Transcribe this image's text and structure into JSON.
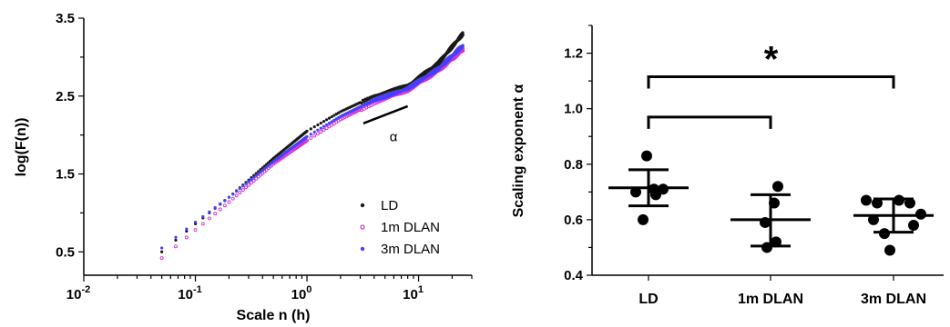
{
  "chart_data": [
    {
      "type": "scatter",
      "title": "",
      "xlabel": "Scale n (h)",
      "ylabel": "log(F(n))",
      "x_scale": "log",
      "xlim": [
        0.01,
        30
      ],
      "ylim": [
        0.2,
        3.5
      ],
      "x_tick_labels": [
        {
          "value": 0.01,
          "base": "10",
          "exp": "-2"
        },
        {
          "value": 0.1,
          "base": "10",
          "exp": "-1"
        },
        {
          "value": 1,
          "base": "10",
          "exp": "0"
        },
        {
          "value": 10,
          "base": "10",
          "exp": "1"
        }
      ],
      "y_tick_labels": [
        "0.5",
        "1.5",
        "2.5",
        "3.5"
      ],
      "y_ticks": [
        0.5,
        1.5,
        2.5,
        3.5
      ],
      "slope_annotation": {
        "label": "α",
        "x": [
          3.2,
          8
        ],
        "y": [
          2.15,
          2.37
        ]
      },
      "legend": {
        "placement": "bottom-right",
        "entries": [
          "LD",
          "1m DLAN",
          "3m DLAN"
        ]
      },
      "series": [
        {
          "name": "LD",
          "color": "#1a1a1a",
          "marker": "dot",
          "x": [
            0.05,
            0.1,
            0.2,
            0.5,
            1,
            2,
            4,
            8,
            15,
            25
          ],
          "y": [
            0.5,
            0.86,
            1.2,
            1.7,
            2.05,
            2.3,
            2.5,
            2.63,
            2.92,
            3.3
          ]
        },
        {
          "name": "1m DLAN",
          "color": "#cc33cc",
          "marker": "diamond",
          "x": [
            0.05,
            0.1,
            0.2,
            0.5,
            1,
            2,
            4,
            8,
            15,
            25
          ],
          "y": [
            0.42,
            0.78,
            1.14,
            1.63,
            1.93,
            2.2,
            2.42,
            2.58,
            2.83,
            3.1
          ]
        },
        {
          "name": "3m DLAN",
          "color": "#4a3cff",
          "marker": "dot",
          "x": [
            0.05,
            0.1,
            0.2,
            0.5,
            1,
            2,
            4,
            8,
            15,
            25
          ],
          "y": [
            0.55,
            0.88,
            1.2,
            1.66,
            1.98,
            2.24,
            2.45,
            2.6,
            2.85,
            3.15
          ]
        }
      ]
    },
    {
      "type": "scatter",
      "title": "",
      "xlabel": "",
      "ylabel": "Scaling exponent α",
      "ylim": [
        0.4,
        1.3
      ],
      "y_ticks": [
        0.4,
        0.6,
        0.8,
        1.0,
        1.2
      ],
      "y_tick_labels": [
        "0.4",
        "0.6",
        "0.8",
        "1.0",
        "1.2"
      ],
      "categories": [
        "LD",
        "1m DLAN",
        "3m DLAN"
      ],
      "groups": [
        {
          "name": "LD",
          "mean": 0.715,
          "sd_upper": 0.78,
          "sd_lower": 0.65,
          "points": [
            0.83,
            0.7,
            0.69,
            0.71,
            0.6,
            0.71
          ]
        },
        {
          "name": "1m DLAN",
          "mean": 0.6,
          "sd_upper": 0.69,
          "sd_lower": 0.505,
          "points": [
            0.72,
            0.66,
            0.59,
            0.52,
            0.5
          ]
        },
        {
          "name": "3m DLAN",
          "mean": 0.615,
          "sd_upper": 0.675,
          "sd_lower": 0.555,
          "points": [
            0.67,
            0.66,
            0.67,
            0.66,
            0.62,
            0.6,
            0.58,
            0.55,
            0.49
          ]
        }
      ],
      "significance": [
        {
          "from": "LD",
          "to": "3m DLAN",
          "y": 1.115,
          "label": "*"
        },
        {
          "from": "LD",
          "to": "1m DLAN",
          "y": 0.97,
          "label": ""
        }
      ]
    }
  ]
}
